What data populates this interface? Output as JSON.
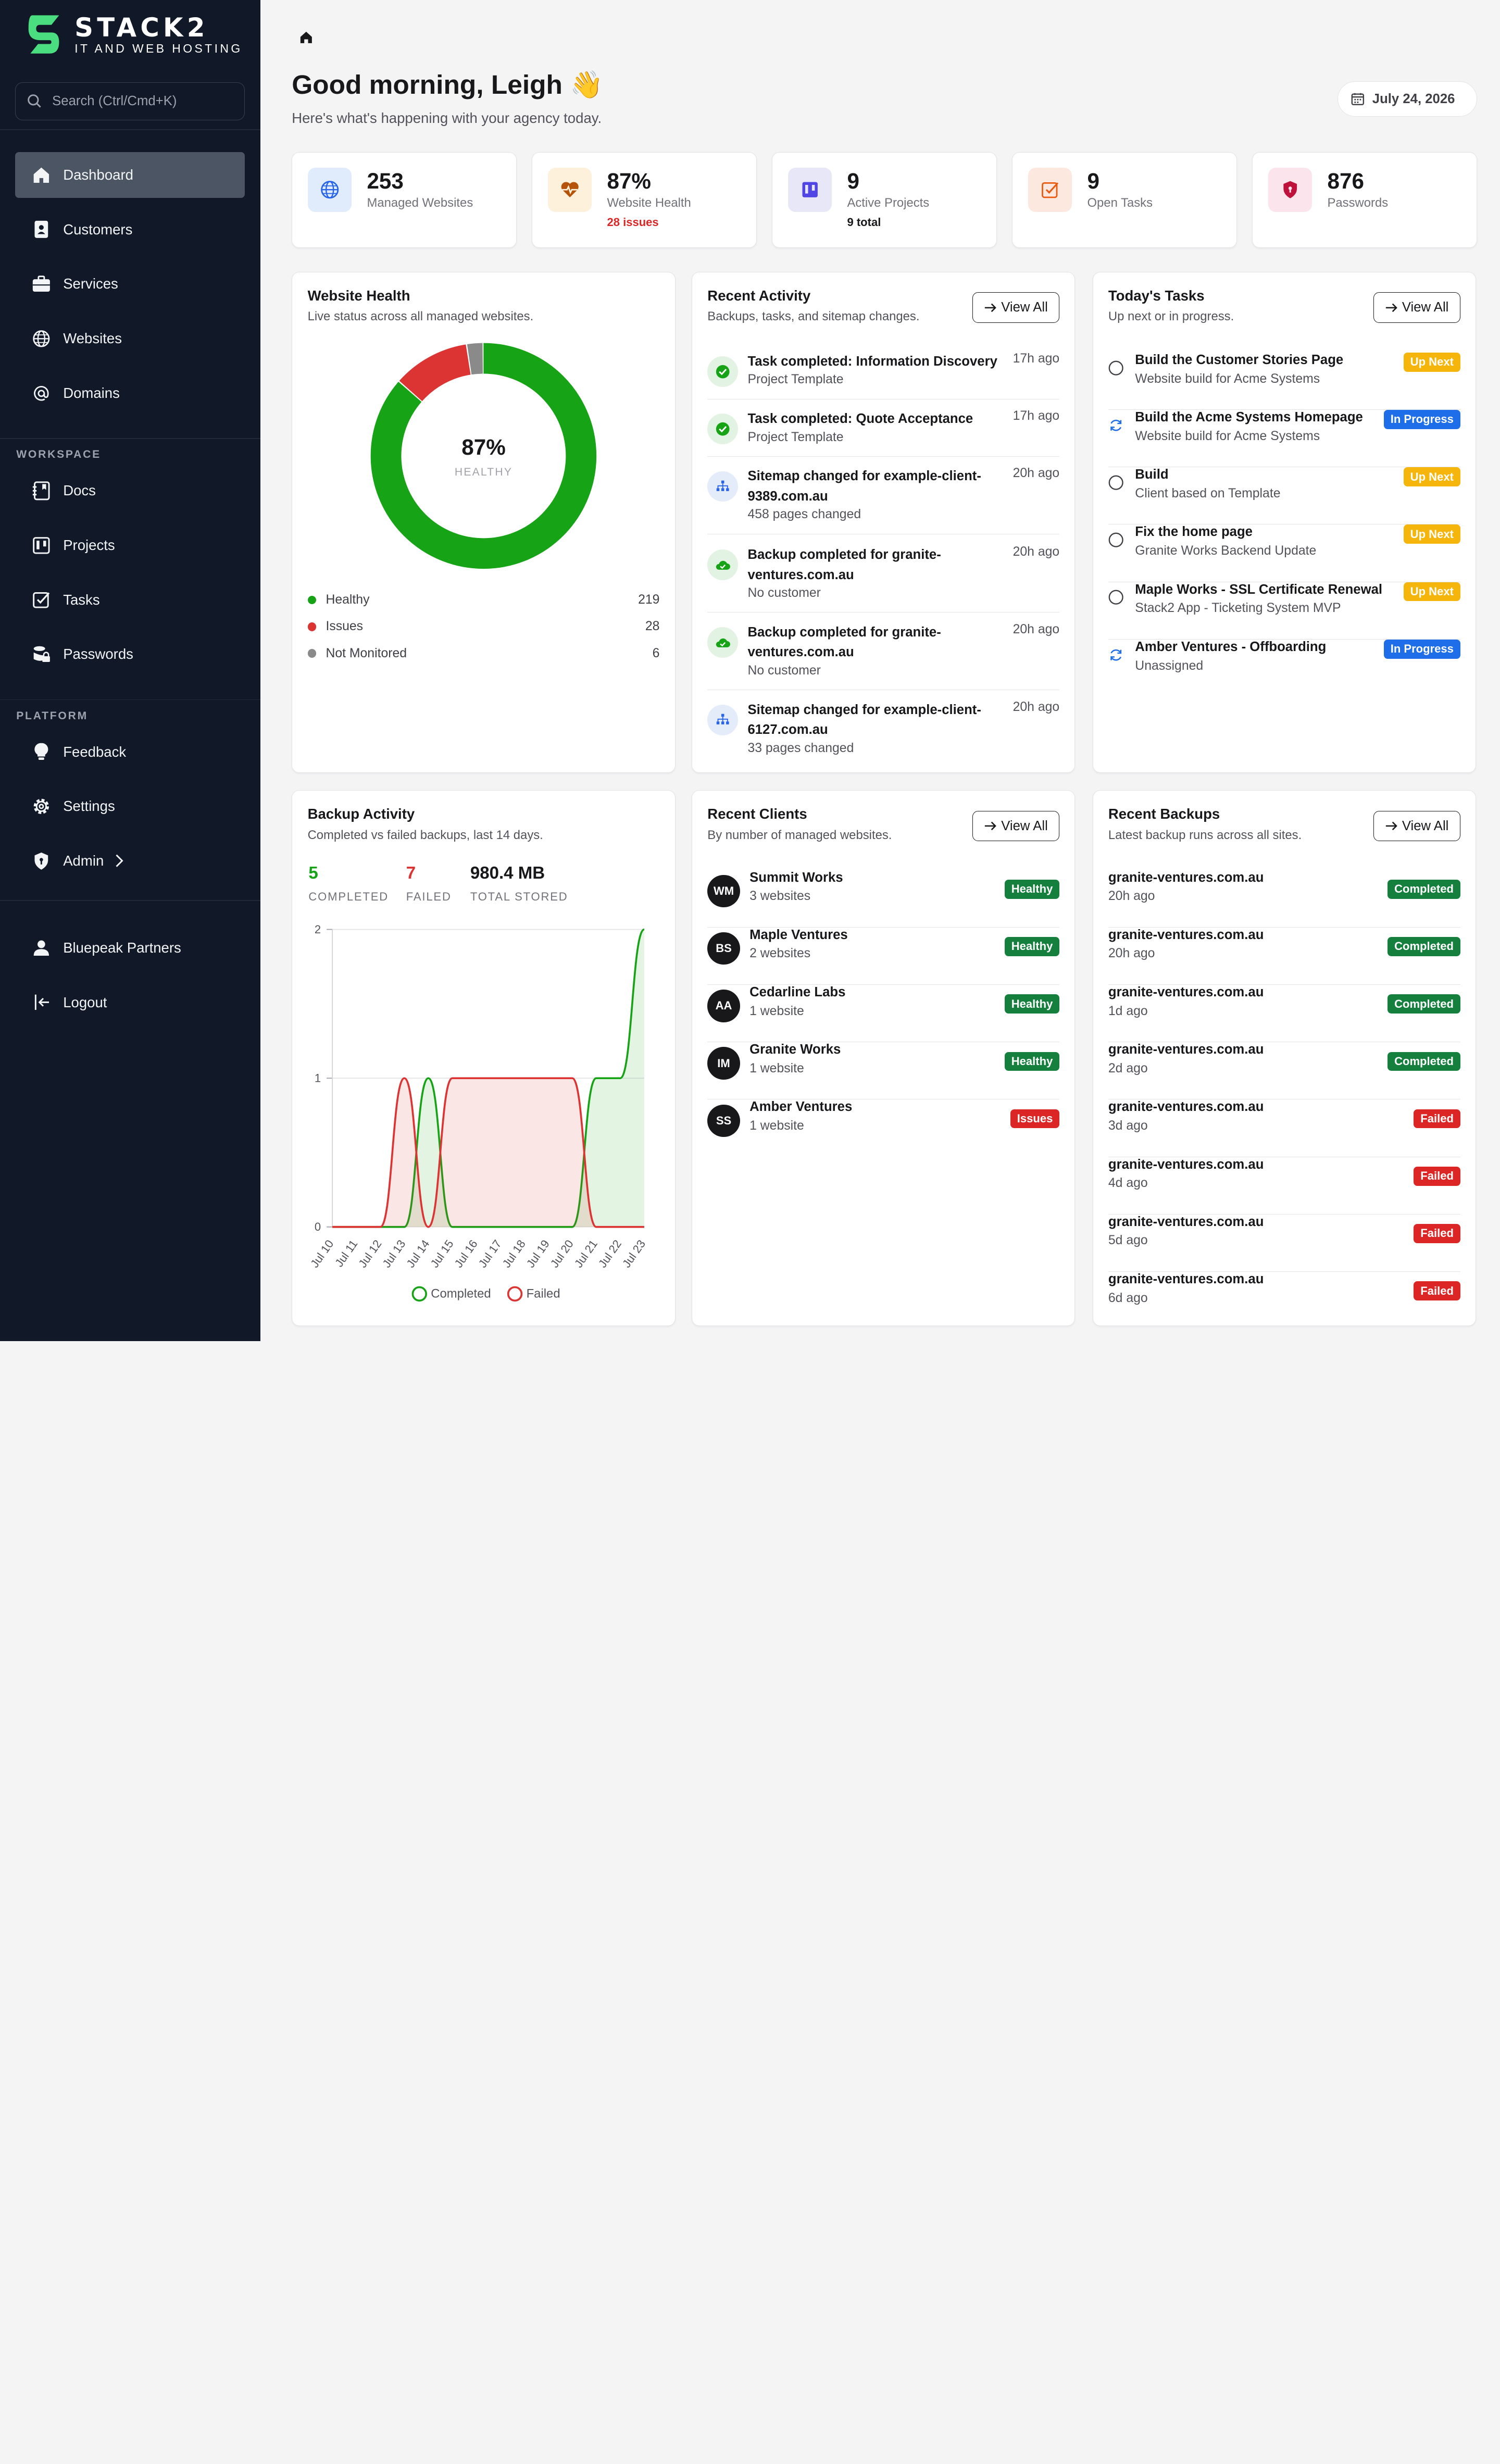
{
  "brand": {
    "name": "STACK2",
    "tagline": "IT AND WEB HOSTING",
    "accent": "#4ade80"
  },
  "search": {
    "placeholder": "Search (Ctrl/Cmd+K)"
  },
  "sidebar": {
    "main": [
      {
        "label": "Dashboard",
        "icon": "home-icon",
        "active": true
      },
      {
        "label": "Customers",
        "icon": "contact-icon"
      },
      {
        "label": "Services",
        "icon": "briefcase-icon"
      },
      {
        "label": "Websites",
        "icon": "globe-icon"
      },
      {
        "label": "Domains",
        "icon": "at-icon"
      }
    ],
    "workspace_label": "WORKSPACE",
    "workspace": [
      {
        "label": "Docs",
        "icon": "docs-icon"
      },
      {
        "label": "Projects",
        "icon": "kanban-icon"
      },
      {
        "label": "Tasks",
        "icon": "checkbox-icon"
      },
      {
        "label": "Passwords",
        "icon": "database-lock-icon"
      }
    ],
    "platform_label": "PLATFORM",
    "platform": [
      {
        "label": "Feedback",
        "icon": "lightbulb-icon"
      },
      {
        "label": "Settings",
        "icon": "gear-icon"
      },
      {
        "label": "Admin",
        "icon": "shield-icon"
      }
    ],
    "account": {
      "label": "Bluepeak Partners",
      "icon": "user-icon"
    },
    "logout": {
      "label": "Logout",
      "icon": "logout-icon"
    }
  },
  "header": {
    "greeting": "Good morning, Leigh 👋",
    "subtitle": "Here's what's happening with your agency today.",
    "date": "July 24, 2026"
  },
  "stats": [
    {
      "value": "253",
      "label": "Managed Websites",
      "sub": "",
      "icon": "globe-icon",
      "bg": "#e0ecfb",
      "color": "#2563eb"
    },
    {
      "value": "87%",
      "label": "Website Health",
      "sub": "28 issues",
      "sub_color": "#dc2626",
      "icon": "heart-pulse-icon",
      "bg": "#fdf1dc",
      "color": "#b45309"
    },
    {
      "value": "9",
      "label": "Active Projects",
      "sub": "9 total",
      "sub_color": "#18181b",
      "icon": "kanban-icon",
      "bg": "#e8e7f8",
      "color": "#4f46e5"
    },
    {
      "value": "9",
      "label": "Open Tasks",
      "sub": "",
      "icon": "checkbox-icon",
      "bg": "#fde8e0",
      "color": "#ea580c"
    },
    {
      "value": "876",
      "label": "Passwords",
      "sub": "",
      "icon": "shield-icon",
      "bg": "#fbe4ec",
      "color": "#be123c"
    }
  ],
  "website_health": {
    "title": "Website Health",
    "subtitle": "Live status across all managed websites.",
    "center_value": "87%",
    "center_label": "HEALTHY",
    "legend": [
      {
        "label": "Healthy",
        "value": "219",
        "color": "#16a316"
      },
      {
        "label": "Issues",
        "value": "28",
        "color": "#dc3333"
      },
      {
        "label": "Not Monitored",
        "value": "6",
        "color": "#8a8a8a"
      }
    ]
  },
  "recent_activity": {
    "title": "Recent Activity",
    "subtitle": "Backups, tasks, and sitemap changes.",
    "view_all": "View All",
    "items": [
      {
        "title": "Task completed: Information Discovery",
        "desc": "Project Template",
        "time": "17h ago",
        "icon": "check-circle-icon"
      },
      {
        "title": "Task completed: Quote Acceptance",
        "desc": "Project Template",
        "time": "17h ago",
        "icon": "check-circle-icon"
      },
      {
        "title": "Sitemap changed for example-client-9389.com.au",
        "desc": "458 pages changed",
        "time": "20h ago",
        "icon": "sitemap-icon"
      },
      {
        "title": "Backup completed for granite-ventures.com.au",
        "desc": "No customer",
        "time": "20h ago",
        "icon": "cloud-check-icon"
      },
      {
        "title": "Backup completed for granite-ventures.com.au",
        "desc": "No customer",
        "time": "20h ago",
        "icon": "cloud-check-icon"
      },
      {
        "title": "Sitemap changed for example-client-6127.com.au",
        "desc": "33 pages changed",
        "time": "20h ago",
        "icon": "sitemap-icon"
      }
    ]
  },
  "todays_tasks": {
    "title": "Today's Tasks",
    "subtitle": "Up next or in progress.",
    "view_all": "View All",
    "items": [
      {
        "title": "Build the Customer Stories Page",
        "desc": "Website build for Acme Systems",
        "status": "Up Next"
      },
      {
        "title": "Build the Acme Systems Homepage",
        "desc": "Website build for Acme Systems",
        "status": "In Progress"
      },
      {
        "title": "Build",
        "desc": "Client based on Template",
        "status": "Up Next"
      },
      {
        "title": "Fix the home page",
        "desc": "Granite Works Backend Update",
        "status": "Up Next"
      },
      {
        "title": "Maple Works - SSL Certificate Renewal",
        "desc": "Stack2 App - Ticketing System MVP",
        "status": "Up Next"
      },
      {
        "title": "Amber Ventures - Offboarding",
        "desc": "Unassigned",
        "status": "In Progress"
      }
    ]
  },
  "backup_activity": {
    "title": "Backup Activity",
    "subtitle": "Completed vs failed backups, last 14 days.",
    "completed_value": "5",
    "completed_label": "COMPLETED",
    "failed_value": "7",
    "failed_label": "FAILED",
    "stored_value": "980.4 MB",
    "stored_label": "TOTAL STORED"
  },
  "chart_data": {
    "type": "area",
    "categories": [
      "Jul 10",
      "Jul 11",
      "Jul 12",
      "Jul 13",
      "Jul 14",
      "Jul 15",
      "Jul 16",
      "Jul 17",
      "Jul 18",
      "Jul 19",
      "Jul 20",
      "Jul 21",
      "Jul 22",
      "Jul 23"
    ],
    "series": [
      {
        "name": "Completed",
        "color": "#16a316",
        "values": [
          0,
          0,
          0,
          0,
          1,
          0,
          0,
          0,
          0,
          0,
          0,
          1,
          1,
          2
        ]
      },
      {
        "name": "Failed",
        "color": "#dc3333",
        "values": [
          0,
          0,
          0,
          1,
          0,
          1,
          1,
          1,
          1,
          1,
          1,
          0,
          0,
          0
        ]
      }
    ],
    "y_ticks": [
      "0",
      "1",
      "2"
    ],
    "ylim": [
      0,
      2
    ],
    "grid": true,
    "legend": "bottom"
  },
  "recent_clients": {
    "title": "Recent Clients",
    "subtitle": "By number of managed websites.",
    "view_all": "View All",
    "items": [
      {
        "initials": "WM",
        "name": "Summit Works",
        "desc": "3 websites",
        "status": "Healthy"
      },
      {
        "initials": "BS",
        "name": "Maple Ventures",
        "desc": "2 websites",
        "status": "Healthy"
      },
      {
        "initials": "AA",
        "name": "Cedarline Labs",
        "desc": "1 website",
        "status": "Healthy"
      },
      {
        "initials": "IM",
        "name": "Granite Works",
        "desc": "1 website",
        "status": "Healthy"
      },
      {
        "initials": "SS",
        "name": "Amber Ventures",
        "desc": "1 website",
        "status": "Issues"
      }
    ]
  },
  "recent_backups": {
    "title": "Recent Backups",
    "subtitle": "Latest backup runs across all sites.",
    "view_all": "View All",
    "items": [
      {
        "site": "granite-ventures.com.au",
        "time": "20h ago",
        "status": "Completed"
      },
      {
        "site": "granite-ventures.com.au",
        "time": "20h ago",
        "status": "Completed"
      },
      {
        "site": "granite-ventures.com.au",
        "time": "1d ago",
        "status": "Completed"
      },
      {
        "site": "granite-ventures.com.au",
        "time": "2d ago",
        "status": "Completed"
      },
      {
        "site": "granite-ventures.com.au",
        "time": "3d ago",
        "status": "Failed"
      },
      {
        "site": "granite-ventures.com.au",
        "time": "4d ago",
        "status": "Failed"
      },
      {
        "site": "granite-ventures.com.au",
        "time": "5d ago",
        "status": "Failed"
      },
      {
        "site": "granite-ventures.com.au",
        "time": "6d ago",
        "status": "Failed"
      }
    ]
  },
  "colors": {
    "sidebar_bg": "#111827",
    "healthy": "#15803d",
    "issues": "#dc2626",
    "up_next": "#f5b50a",
    "in_progress": "#1d6ee8"
  }
}
